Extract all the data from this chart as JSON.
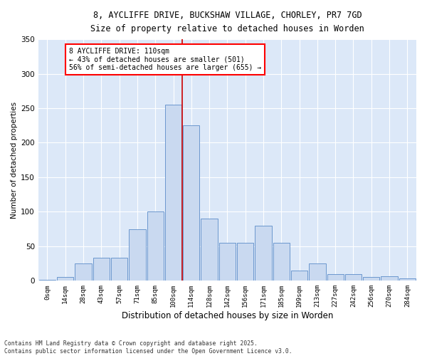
{
  "title_line1": "8, AYCLIFFE DRIVE, BUCKSHAW VILLAGE, CHORLEY, PR7 7GD",
  "title_line2": "Size of property relative to detached houses in Worden",
  "xlabel": "Distribution of detached houses by size in Worden",
  "ylabel": "Number of detached properties",
  "bar_color": "#c9d9f0",
  "bar_edge_color": "#5b8cc8",
  "bg_color": "#dce8f8",
  "annotation_text": "8 AYCLIFFE DRIVE: 110sqm\n← 43% of detached houses are smaller (501)\n56% of semi-detached houses are larger (655) →",
  "vline_color": "#cc0000",
  "categories": [
    "0sqm",
    "14sqm",
    "28sqm",
    "43sqm",
    "57sqm",
    "71sqm",
    "85sqm",
    "100sqm",
    "114sqm",
    "128sqm",
    "142sqm",
    "156sqm",
    "171sqm",
    "185sqm",
    "199sqm",
    "213sqm",
    "227sqm",
    "242sqm",
    "256sqm",
    "270sqm",
    "284sqm"
  ],
  "values": [
    1,
    5,
    25,
    33,
    33,
    75,
    100,
    255,
    225,
    90,
    55,
    55,
    80,
    55,
    15,
    25,
    10,
    10,
    5,
    7,
    3
  ],
  "ylim": [
    0,
    350
  ],
  "yticks": [
    0,
    50,
    100,
    150,
    200,
    250,
    300,
    350
  ],
  "footnote": "Contains HM Land Registry data © Crown copyright and database right 2025.\nContains public sector information licensed under the Open Government Licence v3.0."
}
